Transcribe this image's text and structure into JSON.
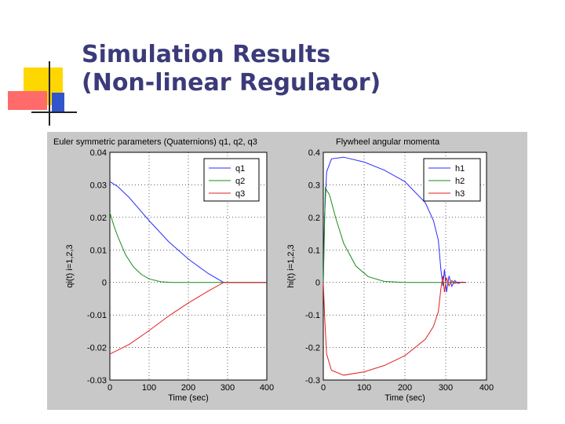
{
  "slide": {
    "title_line1": "Simulation Results",
    "title_line2": "(Non-linear Regulator)"
  },
  "colors": {
    "title": "#3b3b7a",
    "deco_yellow": "#ffd700",
    "deco_red": "#ff5a5a",
    "deco_blue": "#3355cc",
    "figure_bg": "#c8c8c8",
    "series1": "#2b2bff",
    "series2": "#1a8c1a",
    "series3": "#e02020"
  },
  "chart_data": [
    {
      "type": "line",
      "title": "Euler symmetric parameters (Quaternions) q1, q2, q3",
      "xlabel": "Time (sec)",
      "ylabel": "qi(t) i=1,2,3",
      "xlim": [
        0,
        400
      ],
      "ylim": [
        -0.03,
        0.04
      ],
      "xticks": [
        "0",
        "100",
        "200",
        "300",
        "400"
      ],
      "yticks": [
        "0.04",
        "0.03",
        "0.02",
        "0.01",
        "0",
        "-0.01",
        "-0.02",
        "-0.03"
      ],
      "grid": true,
      "legend": "top-right",
      "series": [
        {
          "name": "q1",
          "x": [
            0,
            20,
            50,
            100,
            150,
            200,
            250,
            290,
            350,
            400
          ],
          "y": [
            0.031,
            0.0295,
            0.026,
            0.019,
            0.0125,
            0.0072,
            0.0028,
            0.0,
            0.0,
            0.0
          ]
        },
        {
          "name": "q2",
          "x": [
            0,
            10,
            20,
            40,
            60,
            80,
            100,
            130,
            160,
            200,
            250,
            290,
            400
          ],
          "y": [
            0.0215,
            0.0175,
            0.0142,
            0.0085,
            0.0048,
            0.0025,
            0.0011,
            0.0002,
            0.0,
            0.0,
            0.0,
            0.0,
            0.0
          ]
        },
        {
          "name": "q3",
          "x": [
            0,
            50,
            100,
            150,
            200,
            250,
            290,
            350,
            400
          ],
          "y": [
            -0.022,
            -0.019,
            -0.0148,
            -0.0103,
            -0.0063,
            -0.0027,
            0.0,
            0.0,
            0.0
          ]
        }
      ]
    },
    {
      "type": "line",
      "title": "Flywheel angular momenta",
      "xlabel": "Time (sec)",
      "ylabel": "hi(t) i=1,2,3",
      "xlim": [
        0,
        400
      ],
      "ylim": [
        -0.3,
        0.4
      ],
      "xticks": [
        "0",
        "100",
        "200",
        "300",
        "400"
      ],
      "yticks": [
        "0.4",
        "0.3",
        "0.2",
        "0.1",
        "0",
        "-0.1",
        "-0.2",
        "-0.3"
      ],
      "grid": true,
      "legend": "top-right",
      "series": [
        {
          "name": "h1",
          "x": [
            0,
            3,
            8,
            20,
            50,
            100,
            150,
            200,
            250,
            270,
            282,
            288,
            293,
            297,
            302,
            308,
            315,
            322,
            330,
            340,
            350
          ],
          "y": [
            0.0,
            0.2,
            0.34,
            0.38,
            0.385,
            0.37,
            0.345,
            0.31,
            0.245,
            0.19,
            0.13,
            0.04,
            -0.01,
            0.04,
            -0.03,
            0.02,
            -0.012,
            0.006,
            -0.003,
            0.001,
            0.0
          ]
        },
        {
          "name": "h2",
          "x": [
            0,
            5,
            15,
            30,
            50,
            80,
            110,
            150,
            200,
            260,
            300,
            350
          ],
          "y": [
            0.0,
            0.29,
            0.27,
            0.2,
            0.12,
            0.05,
            0.018,
            0.003,
            0.0,
            0.0,
            0.0,
            0.0
          ]
        },
        {
          "name": "h3",
          "x": [
            0,
            3,
            8,
            20,
            50,
            100,
            150,
            200,
            250,
            270,
            282,
            288,
            293,
            297,
            302,
            308,
            315,
            322,
            330,
            340,
            350
          ],
          "y": [
            0.0,
            -0.1,
            -0.22,
            -0.27,
            -0.285,
            -0.275,
            -0.255,
            -0.225,
            -0.175,
            -0.135,
            -0.09,
            -0.02,
            0.02,
            -0.03,
            0.015,
            -0.01,
            0.006,
            -0.003,
            0.001,
            0.0,
            0.0
          ]
        }
      ]
    }
  ]
}
